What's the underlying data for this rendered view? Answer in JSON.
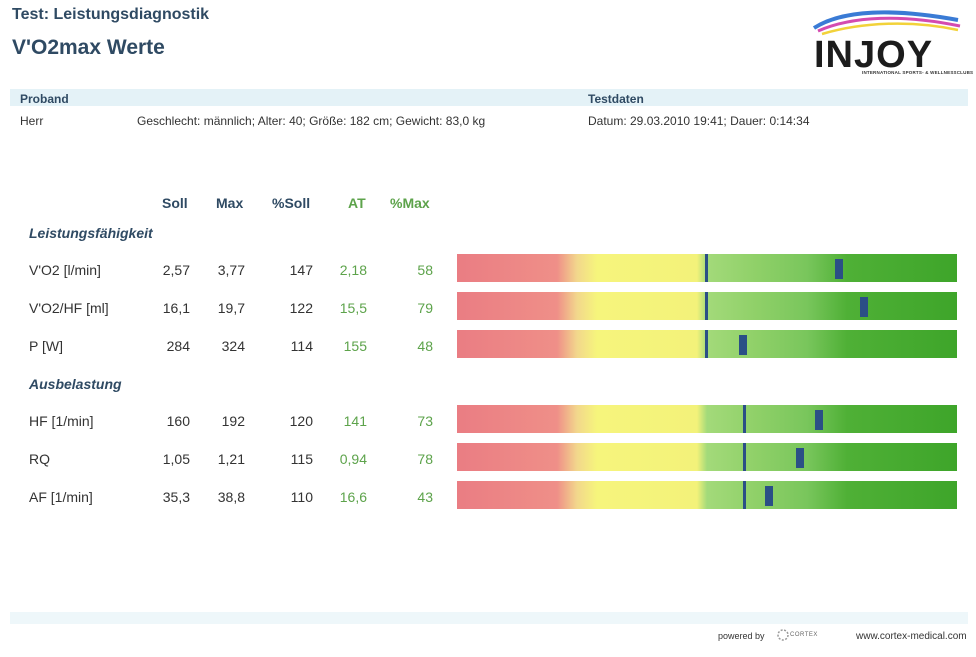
{
  "header": {
    "title_top": "Test: Leistungsdiagnostik",
    "title_main": "V'O2max Werte"
  },
  "logo": {
    "word": "INJOY",
    "tagline": "INTERNATIONAL SPORTS- & WELLNESSCLUBS"
  },
  "proband": {
    "label": "Proband",
    "salutation": "Herr",
    "details": "Geschlecht: männlich; Alter: 40; Größe: 182 cm; Gewicht: 83,0 kg"
  },
  "testdaten": {
    "label": "Testdaten",
    "details": "Datum: 29.03.2010 19:41; Dauer: 0:14:34"
  },
  "columns": {
    "soll": "Soll",
    "max": "Max",
    "psoll": "%Soll",
    "at": "AT",
    "pmax": "%Max"
  },
  "sections": {
    "leistung": "Leistungsfähigkeit",
    "ausbelastung": "Ausbelastung"
  },
  "rows": [
    {
      "label": "V'O2 [l/min]",
      "soll": "2,57",
      "max": "3,77",
      "psoll": "147",
      "at": "2,18",
      "pmax": "58"
    },
    {
      "label": "V'O2/HF [ml]",
      "soll": "16,1",
      "max": "19,7",
      "psoll": "122",
      "at": "15,5",
      "pmax": "79"
    },
    {
      "label": "P [W]",
      "soll": "284",
      "max": "324",
      "psoll": "114",
      "at": "155",
      "pmax": "48"
    },
    {
      "label": "HF [1/min]",
      "soll": "160",
      "max": "192",
      "psoll": "120",
      "at": "141",
      "pmax": "73"
    },
    {
      "label": "RQ",
      "soll": "1,05",
      "max": "1,21",
      "psoll": "115",
      "at": "0,94",
      "pmax": "78"
    },
    {
      "label": "AF [1/min]",
      "soll": "35,3",
      "max": "38,8",
      "psoll": "110",
      "at": "16,6",
      "pmax": "43"
    }
  ],
  "colors": {
    "title": "#2f4a63",
    "green_text": "#5da34b",
    "marker": "#2b4f86",
    "band": "#e4f2f7"
  },
  "footer": {
    "powered_by": "powered by",
    "brand": "CORTEX",
    "website": "www.cortex-medical.com"
  }
}
